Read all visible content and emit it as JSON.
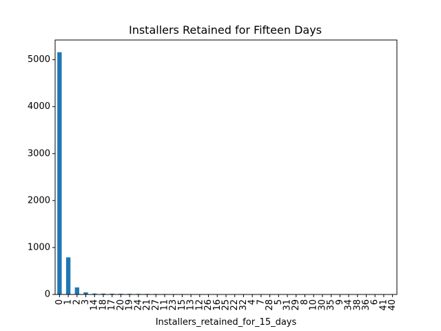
{
  "chart_data": {
    "type": "bar",
    "title": "Installers Retained for Fifteen Days",
    "xlabel": "Installers_retained_for_15_days",
    "ylabel": "",
    "categories": [
      "0",
      "1",
      "2",
      "3",
      "14",
      "18",
      "17",
      "20",
      "19",
      "24",
      "21",
      "27",
      "11",
      "23",
      "15",
      "13",
      "12",
      "26",
      "16",
      "25",
      "22",
      "32",
      "4",
      "7",
      "28",
      "5",
      "31",
      "29",
      "8",
      "10",
      "30",
      "35",
      "9",
      "34",
      "38",
      "36",
      "6",
      "41",
      "40"
    ],
    "values": [
      5160,
      790,
      150,
      45,
      20,
      18,
      16,
      14,
      13,
      12,
      11,
      10,
      9,
      8,
      8,
      7,
      7,
      6,
      5,
      4,
      3,
      3,
      2,
      2,
      2,
      2,
      1,
      1,
      1,
      1,
      1,
      1,
      1,
      1,
      1,
      1,
      1,
      1,
      1
    ],
    "ylim": [
      0,
      5420
    ],
    "yticks": [
      0,
      1000,
      2000,
      3000,
      4000,
      5000
    ],
    "bar_color": "#1f77b4",
    "grid": false,
    "legend": "none"
  }
}
